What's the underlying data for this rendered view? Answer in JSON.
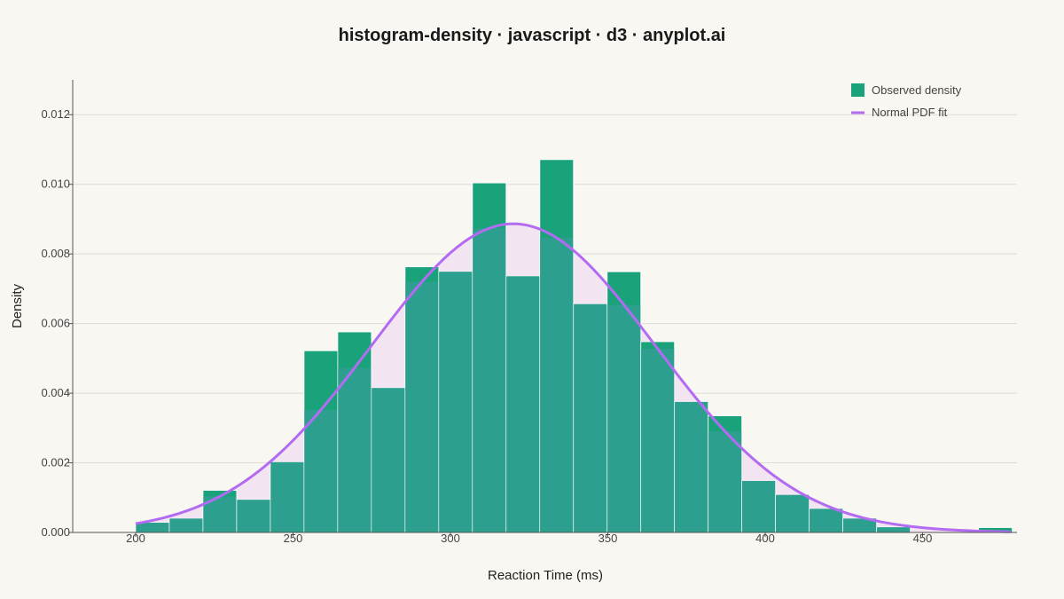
{
  "chart_data": {
    "type": "bar",
    "title": "histogram-density · javascript · d3 · anyplot.ai",
    "xlabel": "Reaction Time (ms)",
    "ylabel": "Density",
    "xlim": [
      180,
      480
    ],
    "ylim": [
      0,
      0.013
    ],
    "x_ticks": [
      200,
      250,
      300,
      350,
      400,
      450
    ],
    "y_ticks": [
      0.0,
      0.002,
      0.004,
      0.006,
      0.008,
      0.01,
      0.012
    ],
    "y_tick_labels": [
      "0.000",
      "0.002",
      "0.004",
      "0.006",
      "0.008",
      "0.010",
      "0.012"
    ],
    "grid": true,
    "legend_position": "top-right",
    "colors": {
      "bar": "#1aa37a",
      "bar_overlap": "#2d9f8f",
      "curve": "#b36bf2",
      "curve_fill": "#f3e4f1",
      "grid": "#dedbd4",
      "axis": "#555555"
    },
    "series": [
      {
        "name": "Observed density",
        "kind": "histogram",
        "bins": [
          {
            "x0": 200,
            "x1": 210.7,
            "value": 0.00028
          },
          {
            "x0": 210.7,
            "x1": 221.4,
            "value": 0.0004
          },
          {
            "x0": 221.4,
            "x1": 232.1,
            "value": 0.00121
          },
          {
            "x0": 232.1,
            "x1": 242.8,
            "value": 0.00094
          },
          {
            "x0": 242.8,
            "x1": 253.5,
            "value": 0.00202
          },
          {
            "x0": 253.5,
            "x1": 264.2,
            "value": 0.00522
          },
          {
            "x0": 264.2,
            "x1": 274.9,
            "value": 0.00576
          },
          {
            "x0": 274.9,
            "x1": 285.6,
            "value": 0.00415
          },
          {
            "x0": 285.6,
            "x1": 296.3,
            "value": 0.00763
          },
          {
            "x0": 296.3,
            "x1": 307.0,
            "value": 0.00749
          },
          {
            "x0": 307.0,
            "x1": 317.7,
            "value": 0.01004
          },
          {
            "x0": 317.7,
            "x1": 328.4,
            "value": 0.00736
          },
          {
            "x0": 328.4,
            "x1": 339.1,
            "value": 0.01071
          },
          {
            "x0": 339.1,
            "x1": 349.8,
            "value": 0.00656
          },
          {
            "x0": 349.8,
            "x1": 360.5,
            "value": 0.00749
          },
          {
            "x0": 360.5,
            "x1": 371.2,
            "value": 0.00548
          },
          {
            "x0": 371.2,
            "x1": 381.9,
            "value": 0.00375
          },
          {
            "x0": 381.9,
            "x1": 392.6,
            "value": 0.00335
          },
          {
            "x0": 392.6,
            "x1": 403.3,
            "value": 0.00148
          },
          {
            "x0": 403.3,
            "x1": 414.0,
            "value": 0.00108
          },
          {
            "x0": 414.0,
            "x1": 424.7,
            "value": 0.00068
          },
          {
            "x0": 424.7,
            "x1": 435.4,
            "value": 0.0004
          },
          {
            "x0": 435.4,
            "x1": 446.1,
            "value": 0.00015
          },
          {
            "x0": 467.8,
            "x1": 478.5,
            "value": 0.00014
          }
        ]
      },
      {
        "name": "Normal PDF fit",
        "kind": "line",
        "mean": 320,
        "sd": 45,
        "x_range": [
          200,
          478
        ]
      }
    ]
  }
}
